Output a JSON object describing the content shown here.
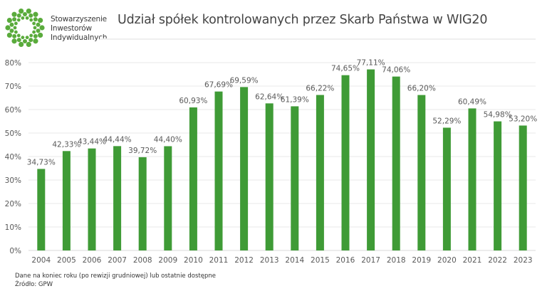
{
  "brand": {
    "lines": [
      "Stowarzyszenie",
      "Inwestorów",
      "Indywidualnych"
    ],
    "logo_icon": "dot-ring-logo-icon",
    "logo_color": "#5aab3c"
  },
  "footer": {
    "note": "Dane na koniec roku (po rewizji grudniowej) lub ostatnie dostępne",
    "source": "Źródło: GPW"
  },
  "chart_data": {
    "type": "bar",
    "title": "Udział spółek kontrolowanych przez Skarb Państwa w WIG20",
    "xlabel": "",
    "ylabel": "",
    "categories": [
      "2004",
      "2005",
      "2006",
      "2007",
      "2008",
      "2009",
      "2010",
      "2011",
      "2012",
      "2013",
      "2014",
      "2015",
      "2016",
      "2017",
      "2018",
      "2019",
      "2020",
      "2021",
      "2022",
      "2023"
    ],
    "values": [
      34.73,
      42.33,
      43.44,
      44.44,
      39.72,
      44.4,
      60.93,
      67.69,
      69.59,
      62.64,
      61.39,
      66.22,
      74.65,
      77.11,
      74.06,
      66.2,
      52.29,
      60.49,
      54.98,
      53.2
    ],
    "data_labels": [
      "34,73%",
      "42,33%",
      "43,44%",
      "44,44%",
      "39,72%",
      "44,40%",
      "60,93%",
      "67,69%",
      "69,59%",
      "62,64%",
      "61,39%",
      "66,22%",
      "74,65%",
      "77,11%",
      "74,06%",
      "66,20%",
      "52,29%",
      "60,49%",
      "54,98%",
      "53,20%"
    ],
    "ylim": [
      0,
      80
    ],
    "yticks": [
      0,
      10,
      20,
      30,
      40,
      50,
      60,
      70,
      80
    ],
    "ytick_labels": [
      "0%",
      "10%",
      "20%",
      "30%",
      "40%",
      "50%",
      "60%",
      "70%",
      "80%"
    ],
    "grid": true,
    "legend": "none",
    "bar_color": "#3f9b36"
  }
}
